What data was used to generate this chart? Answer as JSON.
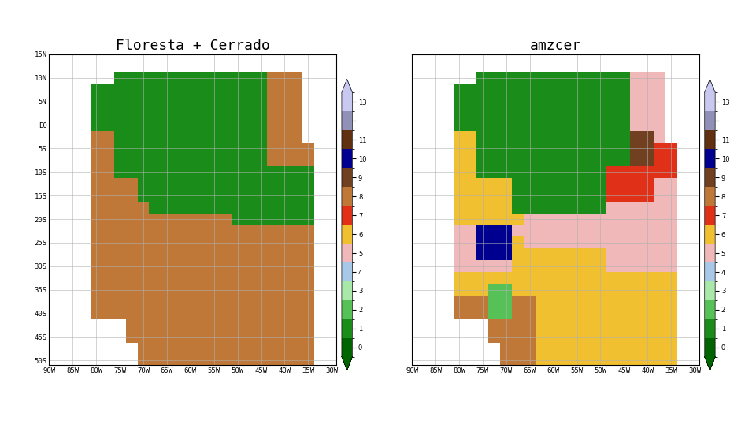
{
  "title_left": "Floresta + Cerrado",
  "title_right": "amzcer",
  "lon_min": -90,
  "lon_max": -29,
  "lat_min": -51,
  "lat_max": 15,
  "res": 2.5,
  "background_color": "#ffffff",
  "grid_color": "#b0b0b0",
  "title_fontsize": 13,
  "colormap_colors": [
    "#006400",
    "#1a8c1a",
    "#56c156",
    "#a8e8a8",
    "#a8c8e8",
    "#f0b8b8",
    "#f0c030",
    "#e03018",
    "#c07838",
    "#704020",
    "#000090",
    "#603010",
    "#9090b8",
    "#c8c8f0"
  ],
  "cbar_tick_labels": [
    "0",
    "1",
    "2",
    "3",
    "4",
    "5",
    "6",
    "7",
    "8",
    "9",
    "10",
    "11",
    "",
    "13"
  ],
  "lon_ticks": [
    -90,
    -85,
    -80,
    -75,
    -70,
    -65,
    -60,
    -55,
    -50,
    -45,
    -40,
    -35,
    -30
  ],
  "lon_labels": [
    "90W",
    "85W",
    "80W",
    "75W",
    "70W",
    "65W",
    "60W",
    "55W",
    "50W",
    "45W",
    "40W",
    "35W",
    "30W"
  ],
  "lat_ticks": [
    15,
    10,
    5,
    0,
    -5,
    -10,
    -15,
    -20,
    -25,
    -30,
    -35,
    -40,
    -45,
    -50
  ],
  "lat_labels": [
    "15N",
    "10N",
    "5N",
    "E0",
    "5S",
    "10S",
    "15S",
    "20S",
    "25S",
    "30S",
    "35S",
    "40S",
    "45S",
    "50S"
  ]
}
